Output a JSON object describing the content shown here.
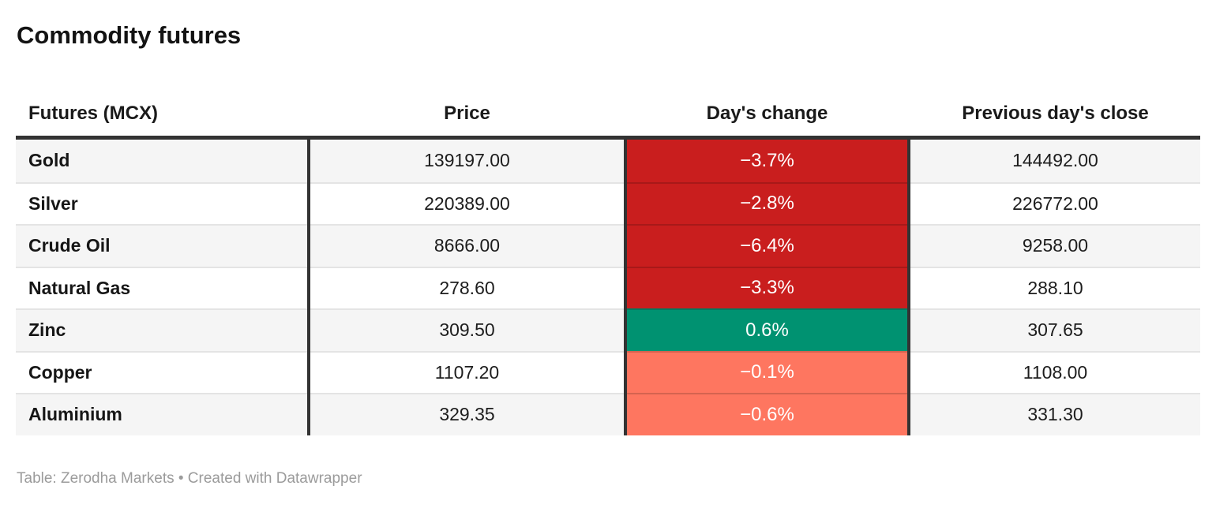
{
  "title": "Commodity futures",
  "table": {
    "columns": {
      "futures": "Futures (MCX)",
      "price": "Price",
      "change": "Day's change",
      "prev_close": "Previous day's close"
    },
    "rows": [
      {
        "name": "Gold",
        "price": "139197.00",
        "change": "−3.7%",
        "change_color": "#c91e1e",
        "prev_close": "144492.00"
      },
      {
        "name": "Silver",
        "price": "220389.00",
        "change": "−2.8%",
        "change_color": "#c91e1e",
        "prev_close": "226772.00"
      },
      {
        "name": "Crude Oil",
        "price": "8666.00",
        "change": "−6.4%",
        "change_color": "#c91e1e",
        "prev_close": "9258.00"
      },
      {
        "name": "Natural Gas",
        "price": "278.60",
        "change": "−3.3%",
        "change_color": "#c91e1e",
        "prev_close": "288.10"
      },
      {
        "name": "Zinc",
        "price": "309.50",
        "change": "0.6%",
        "change_color": "#009271",
        "prev_close": "307.65"
      },
      {
        "name": "Copper",
        "price": "1107.20",
        "change": "−0.1%",
        "change_color": "#fe7660",
        "prev_close": "1108.00"
      },
      {
        "name": "Aluminium",
        "price": "329.35",
        "change": "−0.6%",
        "change_color": "#fe7660",
        "prev_close": "331.30"
      }
    ]
  },
  "footer": "Table: Zerodha Markets • Created with Datawrapper",
  "colors": {
    "negative_strong": "#c91e1e",
    "negative_mild": "#fe7660",
    "positive": "#009271",
    "rule_dark": "#333333",
    "row_stripe": "#f5f5f5",
    "footer_text": "#9b9b9b"
  },
  "chart_data": {
    "type": "table",
    "title": "Commodity futures",
    "columns": [
      "Futures (MCX)",
      "Price",
      "Day's change",
      "Previous day's close"
    ],
    "rows": [
      [
        "Gold",
        139197.0,
        "−3.7%",
        144492.0
      ],
      [
        "Silver",
        220389.0,
        "−2.8%",
        226772.0
      ],
      [
        "Crude Oil",
        8666.0,
        "−6.4%",
        9258.0
      ],
      [
        "Natural Gas",
        278.6,
        "−3.3%",
        288.1
      ],
      [
        "Zinc",
        309.5,
        "0.6%",
        307.65
      ],
      [
        "Copper",
        1107.2,
        "−0.1%",
        1108.0
      ],
      [
        "Aluminium",
        329.35,
        "−0.6%",
        331.3
      ]
    ],
    "notes": "Table: Zerodha Markets • Created with Datawrapper",
    "cell_color_rule": "Day's change: strong negative #c91e1e, mild negative #fe7660, positive #009271, white text"
  }
}
